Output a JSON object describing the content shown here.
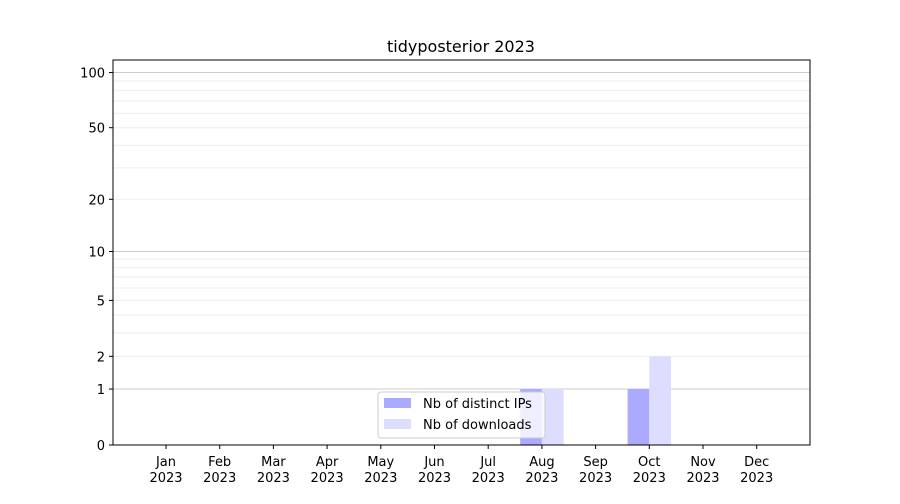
{
  "chart_data": {
    "type": "bar",
    "title": "tidyposterior 2023",
    "xlabel": "",
    "ylabel": "",
    "y_scale": "log(1+y)",
    "ylim": [
      0,
      117
    ],
    "y_ticks": [
      0,
      1,
      2,
      5,
      10,
      20,
      50,
      100
    ],
    "grid": true,
    "legend_position": "lower-center",
    "categories": [
      "Jan\n2023",
      "Feb\n2023",
      "Mar\n2023",
      "Apr\n2023",
      "May\n2023",
      "Jun\n2023",
      "Jul\n2023",
      "Aug\n2023",
      "Sep\n2023",
      "Oct\n2023",
      "Nov\n2023",
      "Dec\n2023"
    ],
    "series": [
      {
        "name": "Nb of distinct IPs",
        "color": "#aaaaff",
        "values": [
          0,
          0,
          0,
          0,
          0,
          0,
          0,
          1,
          0,
          1,
          0,
          0
        ]
      },
      {
        "name": "Nb of downloads",
        "color": "#ddddff",
        "values": [
          0,
          0,
          0,
          0,
          0,
          0,
          0,
          1,
          0,
          2,
          0,
          0
        ]
      }
    ]
  }
}
